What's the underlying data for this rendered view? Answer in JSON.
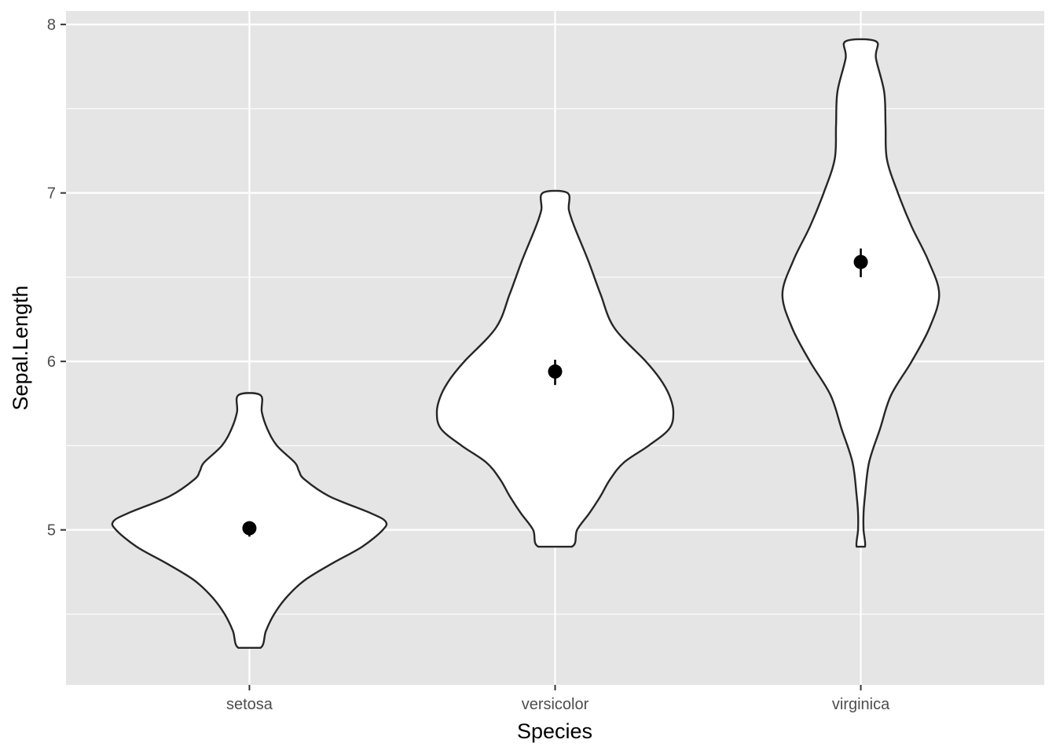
{
  "chart_data": {
    "type": "violin",
    "xlabel": "Species",
    "ylabel": "Sepal.Length",
    "categories": [
      "setosa",
      "versicolor",
      "virginica"
    ],
    "ylim": [
      4.08,
      8.08
    ],
    "y_ticks": [
      5,
      6,
      7,
      8
    ],
    "y_minor_ticks": [
      4.5,
      5.5,
      6.5,
      7.5
    ],
    "grid": true,
    "colors": {
      "panel_background": "#e5e5e5",
      "grid": "#ffffff",
      "violin_fill": "#ffffff",
      "violin_outline": "#262626",
      "point": "#000000"
    },
    "violins": [
      {
        "category": "setosa",
        "min": 4.3,
        "max": 5.8,
        "mean": 5.01,
        "error": [
          4.96,
          5.05
        ],
        "profile": [
          [
            4.3,
            0.08
          ],
          [
            4.4,
            0.12
          ],
          [
            4.5,
            0.18
          ],
          [
            4.6,
            0.27
          ],
          [
            4.7,
            0.4
          ],
          [
            4.8,
            0.6
          ],
          [
            4.9,
            0.82
          ],
          [
            5.0,
            0.97
          ],
          [
            5.05,
            0.99
          ],
          [
            5.1,
            0.88
          ],
          [
            5.2,
            0.58
          ],
          [
            5.3,
            0.4
          ],
          [
            5.35,
            0.36
          ],
          [
            5.4,
            0.33
          ],
          [
            5.5,
            0.2
          ],
          [
            5.6,
            0.13
          ],
          [
            5.7,
            0.09
          ],
          [
            5.8,
            0.08
          ]
        ]
      },
      {
        "category": "versicolor",
        "min": 4.9,
        "max": 7.0,
        "mean": 5.94,
        "error": [
          5.86,
          6.01
        ],
        "profile": [
          [
            4.9,
            0.12
          ],
          [
            5.0,
            0.16
          ],
          [
            5.1,
            0.25
          ],
          [
            5.2,
            0.33
          ],
          [
            5.3,
            0.4
          ],
          [
            5.4,
            0.5
          ],
          [
            5.5,
            0.68
          ],
          [
            5.6,
            0.83
          ],
          [
            5.7,
            0.86
          ],
          [
            5.8,
            0.83
          ],
          [
            5.9,
            0.76
          ],
          [
            6.0,
            0.66
          ],
          [
            6.2,
            0.43
          ],
          [
            6.4,
            0.33
          ],
          [
            6.6,
            0.24
          ],
          [
            6.8,
            0.14
          ],
          [
            6.9,
            0.1
          ],
          [
            7.0,
            0.09
          ]
        ]
      },
      {
        "category": "virginica",
        "min": 4.9,
        "max": 7.9,
        "mean": 6.59,
        "error": [
          6.5,
          6.67
        ],
        "profile": [
          [
            4.9,
            0.03
          ],
          [
            5.0,
            0.02
          ],
          [
            5.1,
            0.02
          ],
          [
            5.2,
            0.03
          ],
          [
            5.4,
            0.06
          ],
          [
            5.6,
            0.14
          ],
          [
            5.8,
            0.22
          ],
          [
            6.0,
            0.37
          ],
          [
            6.2,
            0.5
          ],
          [
            6.4,
            0.57
          ],
          [
            6.6,
            0.49
          ],
          [
            6.8,
            0.37
          ],
          [
            7.0,
            0.27
          ],
          [
            7.2,
            0.19
          ],
          [
            7.4,
            0.18
          ],
          [
            7.6,
            0.17
          ],
          [
            7.8,
            0.11
          ],
          [
            7.9,
            0.11
          ]
        ]
      }
    ]
  }
}
